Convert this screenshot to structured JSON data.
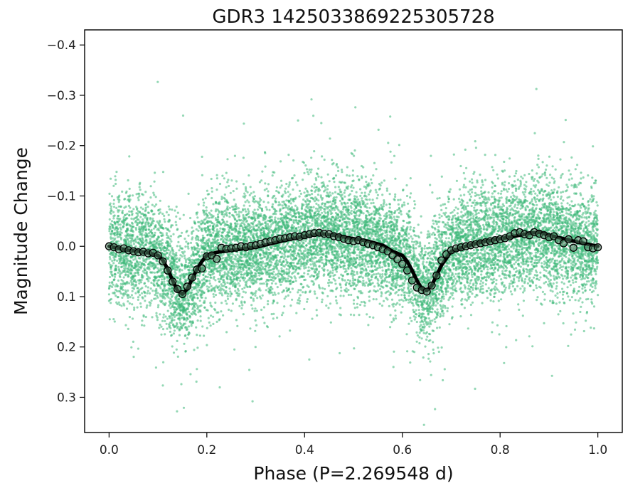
{
  "chart_data": {
    "type": "scatter",
    "title": "GDR3 1425033869225305728",
    "xlabel": "Phase (P=2.269548 d)",
    "ylabel": "Magnitude Change",
    "xlim": [
      -0.05,
      1.05
    ],
    "ylim": [
      0.37,
      -0.43
    ],
    "y_inverted": true,
    "grid": false,
    "x_ticks": [
      0.0,
      0.2,
      0.4,
      0.6,
      0.8,
      1.0
    ],
    "x_tick_labels": [
      "0.0",
      "0.2",
      "0.4",
      "0.6",
      "0.8",
      "1.0"
    ],
    "y_ticks": [
      -0.4,
      -0.3,
      -0.2,
      -0.1,
      0.0,
      0.1,
      0.2,
      0.3
    ],
    "y_tick_labels": [
      "−0.4",
      "−0.3",
      "−0.2",
      "−0.1",
      "0.0",
      "0.1",
      "0.2",
      "0.3"
    ],
    "colors": {
      "points": "#3cb878",
      "model": "#000000",
      "binned_face": "#4a7a5c",
      "binned_edge": "#000000"
    },
    "series": [
      {
        "kind": "photometry-points",
        "scatter_sigma": 0.055,
        "approx_count": 12000,
        "x_range": [
          0.0,
          1.0
        ]
      },
      {
        "kind": "model-curve",
        "x": [
          0.0,
          0.02,
          0.04,
          0.06,
          0.08,
          0.1,
          0.11,
          0.12,
          0.13,
          0.14,
          0.15,
          0.16,
          0.17,
          0.18,
          0.19,
          0.2,
          0.22,
          0.25,
          0.28,
          0.3,
          0.33,
          0.36,
          0.4,
          0.43,
          0.46,
          0.5,
          0.53,
          0.56,
          0.58,
          0.6,
          0.61,
          0.62,
          0.63,
          0.64,
          0.65,
          0.66,
          0.67,
          0.68,
          0.7,
          0.73,
          0.76,
          0.8,
          0.83,
          0.86,
          0.88,
          0.9,
          0.93,
          0.96,
          1.0
        ],
        "y": [
          0.0,
          0.004,
          0.008,
          0.01,
          0.013,
          0.018,
          0.028,
          0.045,
          0.068,
          0.088,
          0.095,
          0.085,
          0.065,
          0.045,
          0.03,
          0.018,
          0.012,
          0.008,
          0.004,
          0.002,
          -0.005,
          -0.012,
          -0.02,
          -0.025,
          -0.022,
          -0.015,
          -0.01,
          -0.002,
          0.01,
          0.018,
          0.03,
          0.048,
          0.068,
          0.085,
          0.088,
          0.078,
          0.058,
          0.038,
          0.01,
          0.0,
          -0.008,
          -0.015,
          -0.02,
          -0.026,
          -0.028,
          -0.022,
          -0.015,
          -0.008,
          0.0
        ]
      },
      {
        "kind": "binned-means",
        "x": [
          0.0,
          0.01,
          0.02,
          0.03,
          0.04,
          0.05,
          0.06,
          0.07,
          0.08,
          0.09,
          0.1,
          0.11,
          0.12,
          0.13,
          0.14,
          0.15,
          0.16,
          0.17,
          0.18,
          0.19,
          0.2,
          0.21,
          0.22,
          0.23,
          0.24,
          0.25,
          0.26,
          0.27,
          0.28,
          0.29,
          0.3,
          0.31,
          0.32,
          0.33,
          0.34,
          0.35,
          0.36,
          0.37,
          0.38,
          0.39,
          0.4,
          0.41,
          0.42,
          0.43,
          0.44,
          0.45,
          0.46,
          0.47,
          0.48,
          0.49,
          0.5,
          0.51,
          0.52,
          0.53,
          0.54,
          0.55,
          0.56,
          0.57,
          0.58,
          0.59,
          0.6,
          0.61,
          0.62,
          0.63,
          0.64,
          0.65,
          0.66,
          0.67,
          0.68,
          0.69,
          0.7,
          0.71,
          0.72,
          0.73,
          0.74,
          0.75,
          0.76,
          0.77,
          0.78,
          0.79,
          0.8,
          0.81,
          0.82,
          0.83,
          0.84,
          0.85,
          0.86,
          0.87,
          0.88,
          0.89,
          0.9,
          0.91,
          0.92,
          0.93,
          0.94,
          0.95,
          0.96,
          0.97,
          0.98,
          0.99,
          1.0
        ],
        "y": [
          0.0,
          0.002,
          0.006,
          0.004,
          0.008,
          0.01,
          0.012,
          0.011,
          0.014,
          0.013,
          0.018,
          0.03,
          0.048,
          0.07,
          0.085,
          0.095,
          0.08,
          0.062,
          0.046,
          0.044,
          0.02,
          0.018,
          0.025,
          0.003,
          0.005,
          0.004,
          0.003,
          0.0,
          0.002,
          -0.001,
          -0.002,
          -0.005,
          -0.008,
          -0.01,
          -0.012,
          -0.015,
          -0.016,
          -0.018,
          -0.02,
          -0.019,
          -0.022,
          -0.024,
          -0.026,
          -0.027,
          -0.025,
          -0.024,
          -0.02,
          -0.018,
          -0.015,
          -0.012,
          -0.01,
          -0.012,
          -0.008,
          -0.005,
          -0.002,
          0.002,
          0.006,
          0.01,
          0.018,
          0.026,
          0.035,
          0.048,
          0.068,
          0.082,
          0.087,
          0.09,
          0.078,
          0.058,
          0.028,
          0.016,
          0.008,
          0.004,
          0.002,
          0.0,
          -0.002,
          -0.004,
          -0.006,
          -0.008,
          -0.01,
          -0.012,
          -0.014,
          -0.016,
          -0.02,
          -0.026,
          -0.028,
          -0.024,
          -0.022,
          -0.028,
          -0.025,
          -0.022,
          -0.018,
          -0.02,
          -0.012,
          -0.006,
          -0.014,
          0.003,
          -0.012,
          -0.01,
          0.002,
          0.004,
          0.002
        ]
      }
    ]
  }
}
